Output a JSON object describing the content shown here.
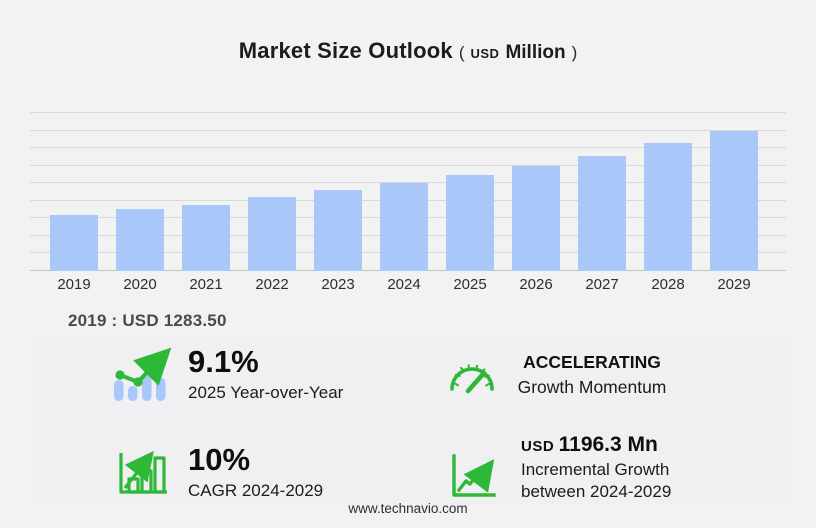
{
  "title": {
    "main": "Market Size Outlook",
    "paren_open": "(",
    "currency_small": "USD",
    "unit": "Million",
    "paren_close": ")"
  },
  "chart_data": {
    "type": "bar",
    "title": "Market Size Outlook (USD Million)",
    "xlabel": "",
    "ylabel": "USD Million",
    "categories": [
      "2019",
      "2020",
      "2021",
      "2022",
      "2023",
      "2024",
      "2025",
      "2026",
      "2027",
      "2028",
      "2029"
    ],
    "values": [
      1283.5,
      1405,
      1505,
      1690,
      1855,
      2003.7,
      2186,
      2395,
      2620,
      2910,
      3200
    ],
    "ylim": [
      0,
      3600
    ],
    "gridline_step": 400,
    "grid": true,
    "legend": false,
    "note": "only 2019 value labeled on screen: 1283.50; other values estimated from gridlines"
  },
  "annotation_2019": "2019 : USD  1283.50",
  "stats": {
    "yoy": {
      "value": "9.1%",
      "label": "2025 Year-over-Year"
    },
    "momentum": {
      "value": "ACCELERATING",
      "label": "Growth Momentum"
    },
    "cagr": {
      "value": "10%",
      "label": "CAGR 2024-2029"
    },
    "incremental": {
      "currency": "USD",
      "value": "1196.3 Mn",
      "label_line1": "Incremental Growth",
      "label_line2": "between 2024-2029"
    }
  },
  "footer": {
    "url": "www.technavio.com"
  },
  "colors": {
    "background": "#f2f2f3",
    "panel": "#f0eff1",
    "bar_blue": "#a9c7f9",
    "accent_green": "#2db838",
    "gridline": "#d9d9d9"
  }
}
